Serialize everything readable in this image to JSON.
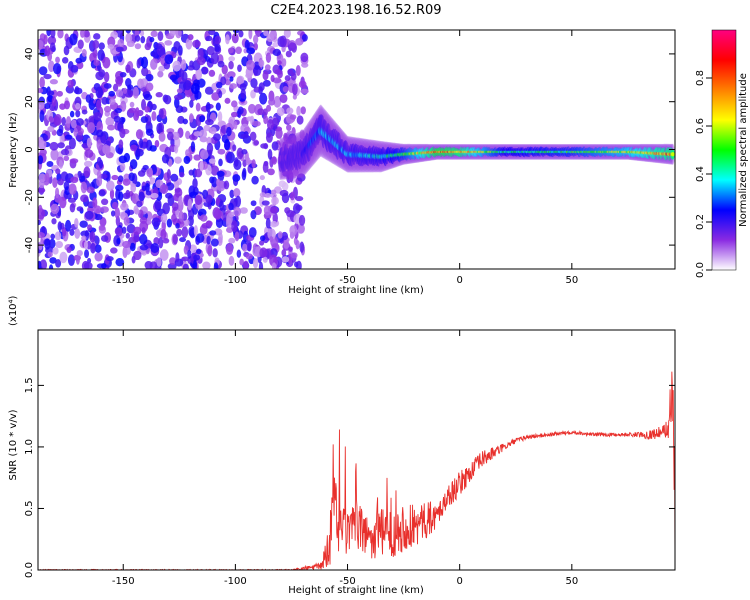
{
  "title": "C2E4.2023.198.16.52.R09",
  "chart_data": [
    {
      "type": "heatmap",
      "xlabel": "Height of straight line (km)",
      "ylabel": "Frequency (Hz)",
      "xlim": [
        -188,
        96
      ],
      "ylim": [
        -50,
        50
      ],
      "xticks": [
        -150,
        -100,
        -50,
        0,
        50
      ],
      "xtick_labels": [
        "-150",
        "-100",
        "-50",
        "0",
        "50"
      ],
      "yticks": [
        -40,
        -20,
        0,
        20,
        40
      ],
      "ytick_labels": [
        "-40",
        "-20",
        "0",
        "20",
        "40"
      ],
      "colorbar": {
        "label": "Normalized spectral amplitude",
        "range": [
          0,
          1
        ],
        "ticks": [
          0.0,
          0.2,
          0.4,
          0.6,
          0.8
        ],
        "tick_labels": [
          "0.0",
          "0.2",
          "0.4",
          "0.6",
          "0.8"
        ],
        "colors": [
          "#ffffff",
          "#8a2be2",
          "#0000ff",
          "#00ffff",
          "#00ff00",
          "#ffff00",
          "#ff8000",
          "#ff0000",
          "#ff0080"
        ]
      },
      "features": {
        "noise_region_x": [
          -188,
          -75
        ],
        "noise_amplitude_range": [
          0.05,
          0.25
        ],
        "signal_band": [
          {
            "x": -80,
            "f": -4,
            "width": 8,
            "amp": 0.15
          },
          {
            "x": -70,
            "f": -2,
            "width": 9,
            "amp": 0.2
          },
          {
            "x": -62,
            "f": 8,
            "width": 10,
            "amp": 0.35
          },
          {
            "x": -50,
            "f": -2,
            "width": 7,
            "amp": 0.35
          },
          {
            "x": -35,
            "f": -3,
            "width": 6,
            "amp": 0.4
          },
          {
            "x": -25,
            "f": -2,
            "width": 4,
            "amp": 0.5
          },
          {
            "x": -10,
            "f": -1,
            "width": 3,
            "amp": 0.85
          },
          {
            "x": 0,
            "f": -1,
            "width": 3,
            "amp": 0.8
          },
          {
            "x": 20,
            "f": -1,
            "width": 3,
            "amp": 0.45
          },
          {
            "x": 50,
            "f": -1,
            "width": 3,
            "amp": 0.5
          },
          {
            "x": 75,
            "f": -1,
            "width": 3,
            "amp": 0.65
          },
          {
            "x": 95,
            "f": -2,
            "width": 4,
            "amp": 0.8
          }
        ]
      }
    },
    {
      "type": "line",
      "xlabel": "Height of straight line (km)",
      "ylabel": "SNR (10 * v/v)",
      "y_multiplier": "(x10⁴)",
      "xlim": [
        -188,
        96
      ],
      "ylim": [
        0,
        1.95
      ],
      "xticks": [
        -150,
        -100,
        -50,
        0,
        50
      ],
      "xtick_labels": [
        "-150",
        "-100",
        "-50",
        "0",
        "50"
      ],
      "yticks": [
        0.0,
        0.5,
        1.0,
        1.5
      ],
      "ytick_labels": [
        "0.0",
        "0.5",
        "1.0",
        "1.5"
      ],
      "series": [
        {
          "color": "#e8302c",
          "x": [
            -188,
            -150,
            -100,
            -75,
            -62,
            -58,
            -56,
            -54,
            -50,
            -45,
            -40,
            -35,
            -30,
            -25,
            -20,
            -15,
            -10,
            -5,
            0,
            5,
            10,
            15,
            20,
            25,
            30,
            40,
            50,
            60,
            70,
            80,
            85,
            90,
            93,
            95,
            96
          ],
          "y": [
            0.0,
            0.0,
            0.0,
            0.0,
            0.03,
            0.2,
            0.6,
            0.35,
            0.3,
            0.35,
            0.25,
            0.3,
            0.3,
            0.35,
            0.35,
            0.4,
            0.45,
            0.6,
            0.7,
            0.8,
            0.9,
            0.95,
            1.0,
            1.05,
            1.08,
            1.1,
            1.12,
            1.1,
            1.1,
            1.1,
            1.1,
            1.12,
            1.15,
            1.5,
            0.5
          ],
          "noise": [
            0.005,
            0.005,
            0.005,
            0.005,
            0.03,
            0.2,
            0.25,
            0.25,
            0.2,
            0.18,
            0.2,
            0.2,
            0.2,
            0.2,
            0.18,
            0.15,
            0.1,
            0.1,
            0.1,
            0.08,
            0.07,
            0.05,
            0.03,
            0.02,
            0.02,
            0.015,
            0.015,
            0.015,
            0.015,
            0.02,
            0.04,
            0.05,
            0.08,
            0.4,
            0.5
          ]
        }
      ]
    }
  ]
}
